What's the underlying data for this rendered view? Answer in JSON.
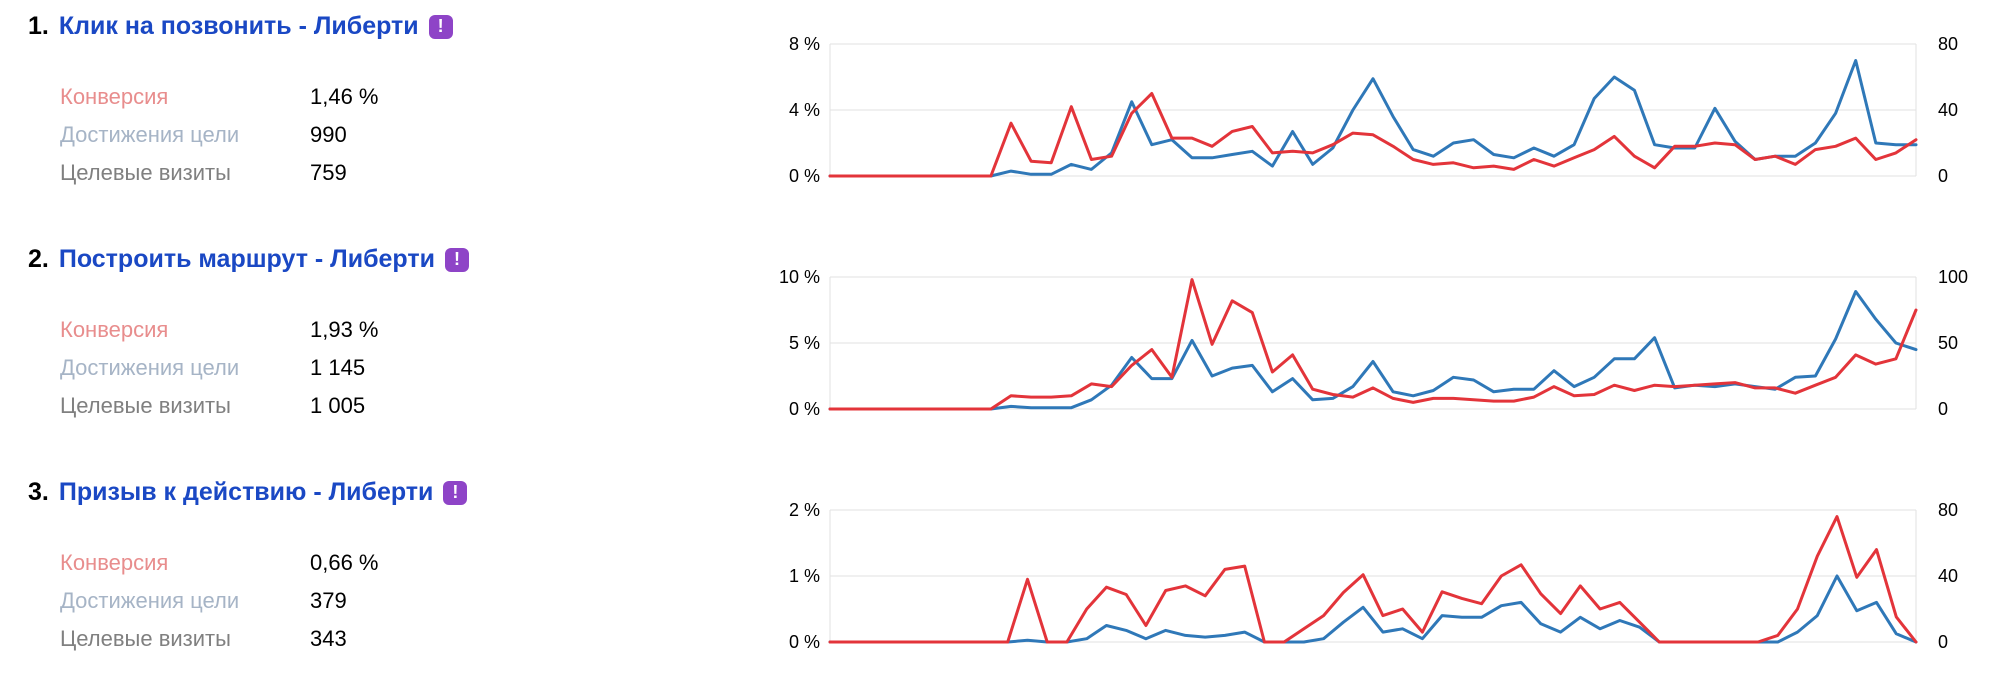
{
  "colors": {
    "conversion": "#e3343a",
    "goal_reaches": "#2f78b8",
    "link": "#1a48c4",
    "badge": "#8e44c7",
    "conversion_label": "#e88d8d",
    "reaches_label": "#a6b4c6",
    "visits_label": "#808080"
  },
  "goals": [
    {
      "number": "1.",
      "title": "Клик на позвонить - Либерти",
      "badge_icon": "exclamation-badge-icon",
      "badge_glyph": "!",
      "metrics": [
        {
          "label": "Конверсия",
          "value": "1,46 %"
        },
        {
          "label": "Достижения цели",
          "value": "990"
        },
        {
          "label": "Целевые визиты",
          "value": "759"
        }
      ]
    },
    {
      "number": "2.",
      "title": "Построить маршрут - Либерти",
      "badge_icon": "exclamation-badge-icon",
      "badge_glyph": "!",
      "metrics": [
        {
          "label": "Конверсия",
          "value": "1,93 %"
        },
        {
          "label": "Достижения цели",
          "value": "1 145"
        },
        {
          "label": "Целевые визиты",
          "value": "1 005"
        }
      ]
    },
    {
      "number": "3.",
      "title": "Призыв к действию - Либерти",
      "badge_icon": "exclamation-badge-icon",
      "badge_glyph": "!",
      "metrics": [
        {
          "label": "Конверсия",
          "value": "0,66 %"
        },
        {
          "label": "Достижения цели",
          "value": "379"
        },
        {
          "label": "Целевые визиты",
          "value": "343"
        }
      ]
    }
  ],
  "chart_data": [
    {
      "type": "line",
      "grid": true,
      "left_axis": {
        "ticks": [
          "0 %",
          "4 %",
          "8 %"
        ],
        "ylim": [
          0,
          8
        ]
      },
      "right_axis": {
        "ticks": [
          "0",
          "40",
          "80"
        ],
        "ylim": [
          0,
          80
        ]
      },
      "series": [
        {
          "axis": "left",
          "color": "#e3343a",
          "values": [
            0,
            0,
            0,
            0,
            0,
            0,
            0,
            0,
            0,
            3.2,
            0.9,
            0.8,
            4.2,
            1.0,
            1.2,
            3.8,
            5.0,
            2.3,
            2.3,
            1.8,
            2.7,
            3.0,
            1.4,
            1.5,
            1.4,
            1.9,
            2.6,
            2.5,
            1.8,
            1.0,
            0.7,
            0.8,
            0.5,
            0.6,
            0.4,
            1.0,
            0.6,
            1.1,
            1.6,
            2.4,
            1.2,
            0.5,
            1.8,
            1.8,
            2.0,
            1.9,
            1.0,
            1.2,
            0.7,
            1.6,
            1.8,
            2.3,
            1.0,
            1.4,
            2.2
          ]
        },
        {
          "axis": "right",
          "color": "#2f78b8",
          "values": [
            0,
            0,
            0,
            0,
            0,
            0,
            0,
            0,
            0,
            3,
            1,
            1,
            7,
            4,
            14,
            45,
            19,
            22,
            11,
            11,
            13,
            15,
            6,
            27,
            7,
            17,
            40,
            59,
            36,
            16,
            12,
            20,
            22,
            13,
            11,
            17,
            12,
            19,
            47,
            60,
            52,
            19,
            17,
            17,
            41,
            21,
            10,
            12,
            12,
            20,
            38,
            70,
            20,
            19,
            19
          ]
        }
      ]
    },
    {
      "type": "line",
      "grid": true,
      "left_axis": {
        "ticks": [
          "0 %",
          "5 %",
          "10 %"
        ],
        "ylim": [
          0,
          10
        ]
      },
      "right_axis": {
        "ticks": [
          "0",
          "50",
          "100"
        ],
        "ylim": [
          0,
          100
        ]
      },
      "series": [
        {
          "axis": "left",
          "color": "#e3343a",
          "values": [
            0,
            0,
            0,
            0,
            0,
            0,
            0,
            0,
            0,
            1.0,
            0.9,
            0.9,
            1.0,
            1.9,
            1.7,
            3.3,
            4.5,
            2.4,
            9.8,
            4.9,
            8.2,
            7.3,
            2.8,
            4.1,
            1.5,
            1.1,
            0.9,
            1.6,
            0.8,
            0.5,
            0.8,
            0.8,
            0.7,
            0.6,
            0.6,
            0.9,
            1.7,
            1.0,
            1.1,
            1.8,
            1.4,
            1.8,
            1.7,
            1.8,
            1.9,
            2.0,
            1.6,
            1.6,
            1.2,
            1.8,
            2.4,
            4.1,
            3.4,
            3.8,
            7.5
          ]
        },
        {
          "axis": "right",
          "color": "#2f78b8",
          "values": [
            0,
            0,
            0,
            0,
            0,
            0,
            0,
            0,
            0,
            2,
            1,
            1,
            1,
            7,
            18,
            39,
            23,
            23,
            52,
            25,
            31,
            33,
            13,
            23,
            7,
            8,
            17,
            36,
            13,
            10,
            14,
            24,
            22,
            13,
            15,
            15,
            29,
            17,
            24,
            38,
            38,
            54,
            16,
            18,
            17,
            19,
            17,
            15,
            24,
            25,
            53,
            89,
            68,
            50,
            45
          ]
        }
      ]
    },
    {
      "type": "line",
      "grid": true,
      "left_axis": {
        "ticks": [
          "0 %",
          "1 %",
          "2 %"
        ],
        "ylim": [
          0,
          2
        ]
      },
      "right_axis": {
        "ticks": [
          "0",
          "40",
          "80"
        ],
        "ylim": [
          0,
          80
        ]
      },
      "series": [
        {
          "axis": "left",
          "color": "#e3343a",
          "values": [
            0,
            0,
            0,
            0,
            0,
            0,
            0,
            0,
            0,
            0,
            0.95,
            0,
            0,
            0.5,
            0.83,
            0.72,
            0.25,
            0.78,
            0.85,
            0.7,
            1.1,
            1.15,
            0,
            0,
            0.2,
            0.4,
            0.75,
            1.02,
            0.4,
            0.5,
            0.15,
            0.76,
            0.66,
            0.58,
            1.0,
            1.17,
            0.73,
            0.43,
            0.85,
            0.5,
            0.6,
            0.3,
            0,
            0,
            0,
            0,
            0,
            0,
            0.1,
            0.5,
            1.3,
            1.9,
            0.98,
            1.4,
            0.38,
            0
          ]
        },
        {
          "axis": "right",
          "color": "#2f78b8",
          "values": [
            0,
            0,
            0,
            0,
            0,
            0,
            0,
            0,
            0,
            0,
            1,
            0,
            0,
            2,
            10,
            7,
            2,
            7,
            4,
            3,
            4,
            6,
            0,
            0,
            0,
            2,
            12,
            21,
            6,
            8,
            2,
            16,
            15,
            15,
            22,
            24,
            11,
            6,
            15,
            8,
            13,
            9,
            0,
            0,
            0,
            0,
            0,
            0,
            0,
            6,
            16,
            40,
            19,
            24,
            5,
            0
          ]
        }
      ]
    }
  ]
}
